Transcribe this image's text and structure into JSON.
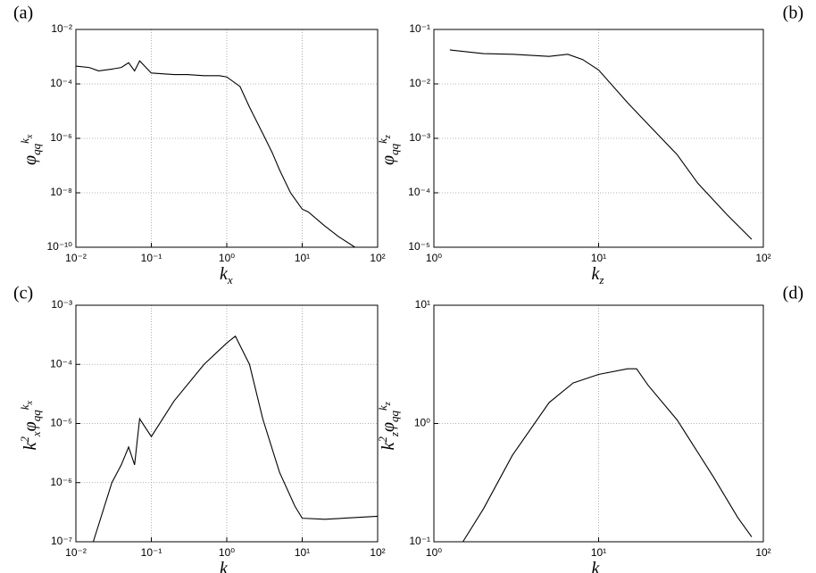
{
  "chart_data": [
    {
      "type": "line",
      "label": "(a)",
      "xlabel": [
        {
          "text": "k"
        },
        {
          "text": "x",
          "pos": "sub"
        }
      ],
      "ylabel": [
        {
          "text": "φ"
        },
        {
          "text": "qq",
          "pos": "sub"
        },
        {
          "text": "k",
          "pos": "sup"
        },
        {
          "text": "x",
          "pos": "supsub"
        }
      ],
      "xscale": "log",
      "yscale": "log",
      "grid": true,
      "xlim": [
        0.01,
        100
      ],
      "ylim": [
        1e-10,
        0.01
      ],
      "xticks": [
        {
          "value": 0.01,
          "label": "10⁻²"
        },
        {
          "value": 0.1,
          "label": "10⁻¹"
        },
        {
          "value": 1,
          "label": "10⁰"
        },
        {
          "value": 10,
          "label": "10¹"
        },
        {
          "value": 100,
          "label": "10²"
        }
      ],
      "yticks": [
        {
          "value": 1e-10,
          "label": "10⁻¹⁰"
        },
        {
          "value": 1e-08,
          "label": "10⁻⁸"
        },
        {
          "value": 1e-06,
          "label": "10⁻⁶"
        },
        {
          "value": 0.0001,
          "label": "10⁻⁴"
        },
        {
          "value": 0.01,
          "label": "10⁻²"
        }
      ],
      "x": [
        0.01,
        0.015,
        0.02,
        0.03,
        0.04,
        0.05,
        0.06,
        0.07,
        0.1,
        0.2,
        0.3,
        0.5,
        0.8,
        1.0,
        1.5,
        2,
        3,
        4,
        5,
        7,
        10,
        12,
        20,
        30,
        50
      ],
      "series": [
        {
          "color": "#000000",
          "values": [
            0.00045,
            0.0004,
            0.0003,
            0.00035,
            0.0004,
            0.0006,
            0.0003,
            0.0007,
            0.00025,
            0.00022,
            0.00022,
            0.0002,
            0.0002,
            0.00018,
            8e-05,
            1.4e-05,
            1.5e-06,
            3e-07,
            7e-08,
            1e-08,
            2.5e-09,
            2e-09,
            6e-10,
            2.5e-10,
            1e-10
          ]
        }
      ]
    },
    {
      "type": "line",
      "label": "(b)",
      "xlabel": [
        {
          "text": "k"
        },
        {
          "text": "z",
          "pos": "sub"
        }
      ],
      "ylabel": [
        {
          "text": "φ"
        },
        {
          "text": "qq",
          "pos": "sub"
        },
        {
          "text": "k",
          "pos": "sup"
        },
        {
          "text": "z",
          "pos": "supsub"
        }
      ],
      "xscale": "log",
      "yscale": "log",
      "grid": true,
      "xlim": [
        1,
        100
      ],
      "ylim": [
        1e-05,
        0.1
      ],
      "xticks": [
        {
          "value": 1,
          "label": "10⁰"
        },
        {
          "value": 10,
          "label": "10¹"
        },
        {
          "value": 100,
          "label": "10²"
        }
      ],
      "yticks": [
        {
          "value": 1e-05,
          "label": "10⁻⁵"
        },
        {
          "value": 0.0001,
          "label": "10⁻⁴"
        },
        {
          "value": 0.001,
          "label": "10⁻³"
        },
        {
          "value": 0.01,
          "label": "10⁻²"
        },
        {
          "value": 0.1,
          "label": "10⁻¹"
        }
      ],
      "x": [
        1.25,
        2,
        3,
        5,
        6.5,
        8,
        10,
        15,
        20,
        30,
        40,
        60,
        85
      ],
      "series": [
        {
          "color": "#000000",
          "values": [
            0.042,
            0.036,
            0.035,
            0.032,
            0.035,
            0.028,
            0.018,
            0.0045,
            0.0018,
            0.0005,
            0.00015,
            4e-05,
            1.4e-05
          ]
        }
      ]
    },
    {
      "type": "line",
      "label": "(c)",
      "xlabel": [
        {
          "text": "k"
        },
        {
          "text": "x",
          "pos": "sub"
        }
      ],
      "ylabel": [
        {
          "text": "k"
        },
        {
          "text": "2",
          "pos": "sup"
        },
        {
          "text": "x",
          "pos": "sub"
        },
        {
          "text": "φ"
        },
        {
          "text": "qq",
          "pos": "sub"
        },
        {
          "text": "k",
          "pos": "sup"
        },
        {
          "text": "x",
          "pos": "supsub"
        }
      ],
      "xscale": "log",
      "yscale": "log",
      "grid": true,
      "xlim": [
        0.01,
        100
      ],
      "ylim": [
        1e-07,
        0.001
      ],
      "xticks": [
        {
          "value": 0.01,
          "label": "10⁻²"
        },
        {
          "value": 0.1,
          "label": "10⁻¹"
        },
        {
          "value": 1,
          "label": "10⁰"
        },
        {
          "value": 10,
          "label": "10¹"
        },
        {
          "value": 100,
          "label": "10²"
        }
      ],
      "yticks": [
        {
          "value": 1e-07,
          "label": "10⁻⁷"
        },
        {
          "value": 1e-06,
          "label": "10⁻⁶"
        },
        {
          "value": 1e-05,
          "label": "10⁻⁵"
        },
        {
          "value": 0.0001,
          "label": "10⁻⁴"
        },
        {
          "value": 0.001,
          "label": "10⁻³"
        }
      ],
      "x": [
        0.017,
        0.03,
        0.04,
        0.05,
        0.06,
        0.07,
        0.1,
        0.2,
        0.5,
        1,
        1.3,
        2,
        3,
        5,
        8,
        10,
        20,
        100
      ],
      "series": [
        {
          "color": "#000000",
          "values": [
            1e-07,
            1e-06,
            2e-06,
            4e-06,
            2e-06,
            1.2e-05,
            6e-06,
            2.4e-05,
            0.0001,
            0.00023,
            0.0003,
            0.0001,
            1.2e-05,
            1.5e-06,
            4e-07,
            2.5e-07,
            2.4e-07,
            2.7e-07
          ]
        }
      ]
    },
    {
      "type": "line",
      "label": "(d)",
      "xlabel": [
        {
          "text": "k"
        },
        {
          "text": "z",
          "pos": "sub"
        }
      ],
      "ylabel": [
        {
          "text": "k"
        },
        {
          "text": "2",
          "pos": "sup"
        },
        {
          "text": "z",
          "pos": "sub"
        },
        {
          "text": "φ"
        },
        {
          "text": "qq",
          "pos": "sub"
        },
        {
          "text": "k",
          "pos": "sup"
        },
        {
          "text": "z",
          "pos": "supsub"
        }
      ],
      "xscale": "log",
      "yscale": "log",
      "grid": true,
      "xlim": [
        1,
        100
      ],
      "ylim": [
        0.1,
        10
      ],
      "xticks": [
        {
          "value": 1,
          "label": "10⁰"
        },
        {
          "value": 10,
          "label": "10¹"
        },
        {
          "value": 100,
          "label": "10²"
        }
      ],
      "yticks": [
        {
          "value": 0.1,
          "label": "10⁻¹"
        },
        {
          "value": 1,
          "label": "10⁰"
        },
        {
          "value": 10,
          "label": "10¹"
        }
      ],
      "x": [
        1.5,
        2,
        3,
        5,
        7,
        10,
        15,
        17,
        20,
        30,
        50,
        70,
        85
      ],
      "series": [
        {
          "color": "#000000",
          "values": [
            0.1,
            0.19,
            0.54,
            1.5,
            2.2,
            2.6,
            2.9,
            2.9,
            2.1,
            1.07,
            0.35,
            0.16,
            0.11
          ]
        }
      ]
    }
  ]
}
